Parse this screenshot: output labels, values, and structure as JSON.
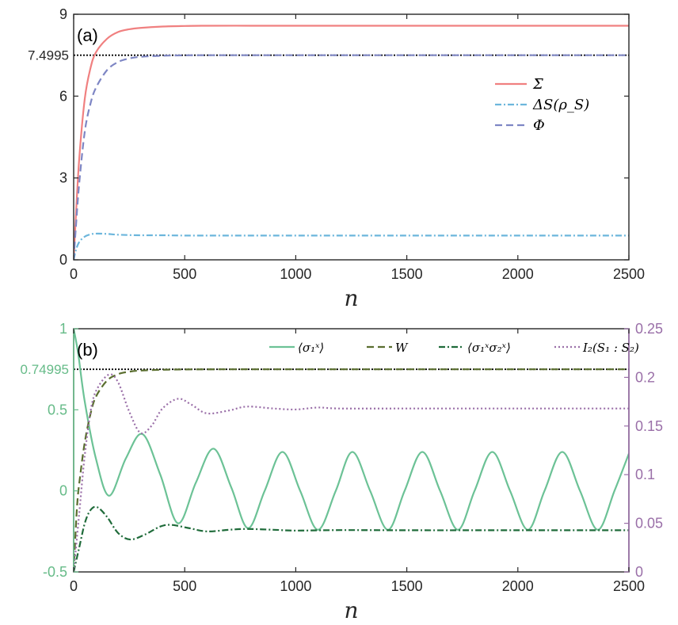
{
  "chart_data": [
    {
      "type": "line",
      "panel_label": "(a)",
      "xlabel": "n",
      "ylabel": "",
      "xlim": [
        0,
        2500
      ],
      "ylim": [
        0,
        9
      ],
      "xticks": [
        0,
        500,
        1000,
        1500,
        2000,
        2500
      ],
      "yticks": [
        0,
        3,
        6,
        9
      ],
      "reference_line": {
        "y": 7.4995,
        "label": "7.4995",
        "style": "dotted",
        "color": "#000000"
      },
      "legend_position": "right",
      "series": [
        {
          "name": "Σ",
          "color": "#f08080",
          "style": "solid",
          "x": [
            0,
            10,
            25,
            50,
            75,
            100,
            150,
            200,
            250,
            300,
            400,
            500,
            600,
            800,
            1000,
            1500,
            2000,
            2500
          ],
          "values": [
            0,
            1.6,
            3.7,
            5.9,
            7.0,
            7.6,
            8.1,
            8.35,
            8.45,
            8.5,
            8.55,
            8.57,
            8.58,
            8.58,
            8.58,
            8.58,
            8.58,
            8.58
          ]
        },
        {
          "name": "ΔS(ρ_S)",
          "color": "#6cb6dc",
          "style": "dashdot",
          "x": [
            0,
            10,
            25,
            50,
            75,
            100,
            150,
            200,
            300,
            400,
            500,
            700,
            1000,
            1500,
            2000,
            2500
          ],
          "values": [
            0,
            0.35,
            0.65,
            0.85,
            0.93,
            0.96,
            0.95,
            0.92,
            0.9,
            0.9,
            0.89,
            0.89,
            0.89,
            0.89,
            0.89,
            0.89
          ]
        },
        {
          "name": "Φ",
          "color": "#7e86c4",
          "style": "dashed",
          "x": [
            0,
            10,
            25,
            50,
            75,
            100,
            150,
            200,
            250,
            300,
            400,
            500,
            600,
            800,
            1000,
            1500,
            2000,
            2500
          ],
          "values": [
            0,
            1.2,
            2.8,
            4.7,
            5.7,
            6.3,
            6.95,
            7.25,
            7.38,
            7.44,
            7.48,
            7.495,
            7.4995,
            7.4995,
            7.4995,
            7.4995,
            7.4995,
            7.4995
          ]
        }
      ]
    },
    {
      "type": "line",
      "panel_label": "(b)",
      "xlabel": "n",
      "ylabel": "",
      "xlim": [
        0,
        2500
      ],
      "ylim": [
        -0.5,
        1
      ],
      "ylim_right": [
        0,
        0.25
      ],
      "xticks": [
        0,
        500,
        1000,
        1500,
        2000,
        2500
      ],
      "yticks": [
        -0.5,
        0,
        0.5,
        1
      ],
      "yticks_right": [
        0,
        0.05,
        0.1,
        0.15,
        0.2,
        0.25
      ],
      "reference_line": {
        "y": 0.74995,
        "label": "0.74995",
        "style": "dotted",
        "color": "#000000"
      },
      "legend_position": "top",
      "left_axis_color": "#66bb88",
      "right_axis_color": "#9a6fa8",
      "series": [
        {
          "name": "⟨σ₁ˣ⟩",
          "color": "#6cc296",
          "style": "solid",
          "axis": "left",
          "x": [
            0,
            20,
            50,
            100,
            160,
            235,
            310,
            390,
            470,
            550,
            630,
            710,
            785,
            860,
            940,
            1020,
            1100,
            1180,
            1255,
            1335,
            1415,
            1490,
            1570,
            1650,
            1730,
            1805,
            1885,
            1965,
            2045,
            2120,
            2200,
            2280,
            2360,
            2435,
            2500
          ],
          "values": [
            1,
            0.85,
            0.55,
            0.2,
            -0.03,
            0.2,
            0.35,
            0.1,
            -0.2,
            0.05,
            0.26,
            0.02,
            -0.23,
            0.0,
            0.24,
            0.0,
            -0.24,
            0.0,
            0.24,
            0.0,
            -0.24,
            0.0,
            0.24,
            0.0,
            -0.24,
            0.0,
            0.24,
            0.0,
            -0.24,
            0.0,
            0.24,
            0.0,
            -0.24,
            0.0,
            0.23
          ]
        },
        {
          "name": "W",
          "color": "#5a6e2f",
          "style": "dashed",
          "axis": "left",
          "x": [
            0,
            15,
            30,
            50,
            75,
            100,
            150,
            200,
            250,
            300,
            400,
            500,
            700,
            1000,
            1500,
            2000,
            2500
          ],
          "values": [
            -0.5,
            -0.1,
            0.1,
            0.3,
            0.47,
            0.58,
            0.68,
            0.72,
            0.735,
            0.742,
            0.747,
            0.749,
            0.74995,
            0.74995,
            0.74995,
            0.74995,
            0.74995
          ]
        },
        {
          "name": "⟨σ₁ˣσ₂ˣ⟩",
          "color": "#1f6b3a",
          "style": "dashdot",
          "axis": "left",
          "x": [
            0,
            25,
            50,
            75,
            105,
            150,
            200,
            255,
            320,
            390,
            440,
            520,
            600,
            700,
            780,
            900,
            1000,
            1200,
            1500,
            2000,
            2500
          ],
          "values": [
            -0.5,
            -0.35,
            -0.2,
            -0.12,
            -0.1,
            -0.16,
            -0.26,
            -0.3,
            -0.27,
            -0.22,
            -0.21,
            -0.23,
            -0.25,
            -0.24,
            -0.235,
            -0.24,
            -0.245,
            -0.242,
            -0.243,
            -0.243,
            -0.243
          ]
        },
        {
          "name": "I₂(S₁ : S₂)",
          "color": "#9a6fa8",
          "style": "dotted",
          "axis": "right",
          "x": [
            0,
            25,
            50,
            80,
            110,
            160,
            200,
            250,
            300,
            350,
            400,
            470,
            530,
            600,
            700,
            780,
            900,
            1000,
            1100,
            1200,
            1500,
            2000,
            2500
          ],
          "values": [
            0,
            0.06,
            0.12,
            0.17,
            0.19,
            0.203,
            0.195,
            0.165,
            0.143,
            0.15,
            0.168,
            0.178,
            0.172,
            0.163,
            0.166,
            0.17,
            0.168,
            0.167,
            0.169,
            0.168,
            0.168,
            0.168,
            0.168
          ]
        }
      ]
    }
  ]
}
